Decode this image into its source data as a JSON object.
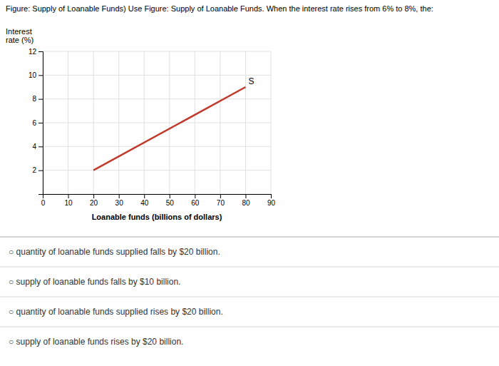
{
  "chart_data": {
    "type": "line",
    "title": "Figure: Supply of Loanable Funds) Use Figure: Supply of Loanable Funds. When the interest rate rises from 6% to 8%, the:",
    "ylabel": [
      "Interest",
      "rate (%)"
    ],
    "xlabel": "Loanable funds (billions of dollars)",
    "x": [
      20,
      80
    ],
    "series": [
      {
        "name": "S",
        "color": "#c0392b",
        "values": [
          2,
          9
        ]
      }
    ],
    "xlim": [
      0,
      90
    ],
    "ylim": [
      0,
      12
    ],
    "xticks": [
      0,
      10,
      20,
      30,
      40,
      50,
      60,
      70,
      80,
      90
    ],
    "yticks": [
      {
        "value": 0,
        "label": null
      },
      2,
      4,
      6,
      8,
      10,
      12
    ],
    "grid": true,
    "annotations": [
      "○  quantity of loanable funds supplied falls by $20 billion.",
      "○  supply of loanable funds falls by $10 billion.",
      "○  quantity of loanable funds supplied rises by $20 billion.",
      "○  supply of loanable funds rises by $20 billion."
    ]
  }
}
